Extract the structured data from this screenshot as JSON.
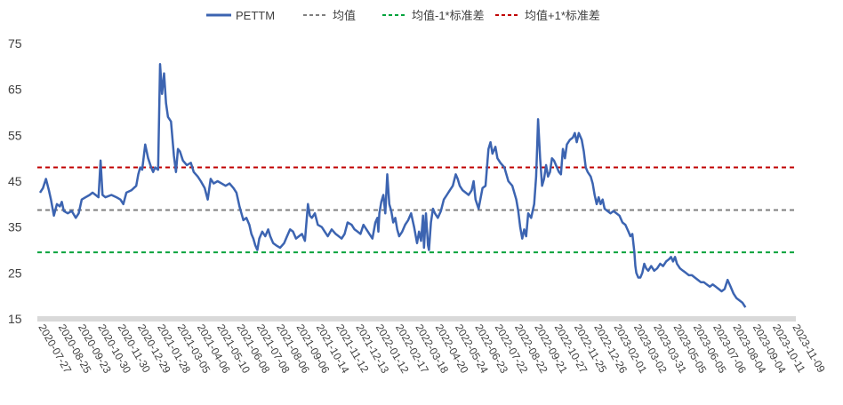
{
  "chart_data": {
    "type": "line",
    "title": "",
    "xlabel": "",
    "ylabel": "",
    "ylim": [
      15,
      75
    ],
    "yticks": [
      15,
      25,
      35,
      45,
      55,
      65,
      75
    ],
    "grid": false,
    "legend_position": "top",
    "x_tick_labels": [
      "2020-07-27",
      "2020-08-25",
      "2020-09-23",
      "2020-10-30",
      "2020-11-30",
      "2020-12-29",
      "2021-01-28",
      "2021-03-05",
      "2021-04-06",
      "2021-05-10",
      "2021-06-08",
      "2021-07-08",
      "2021-08-06",
      "2021-09-06",
      "2021-10-14",
      "2021-11-12",
      "2021-12-13",
      "2022-01-12",
      "2022-02-17",
      "2022-03-18",
      "2022-04-20",
      "2022-05-24",
      "2022-06-23",
      "2022-07-22",
      "2022-08-22",
      "2022-09-21",
      "2022-10-27",
      "2022-11-25",
      "2022-12-26",
      "2023-02-01",
      "2023-03-02",
      "2023-03-31",
      "2023-05-05",
      "2023-06-05",
      "2023-07-06",
      "2023-08-04",
      "2023-09-04",
      "2023-10-11",
      "2023-11-09"
    ],
    "series": [
      {
        "name": "PETTM",
        "color": "#3c64b1",
        "style": "solid",
        "points": [
          [
            0,
            42.5
          ],
          [
            0.15,
            43.5
          ],
          [
            0.3,
            45.5
          ],
          [
            0.45,
            43
          ],
          [
            0.55,
            41
          ],
          [
            0.7,
            37.5
          ],
          [
            0.85,
            40
          ],
          [
            1.0,
            39.5
          ],
          [
            1.1,
            40.5
          ],
          [
            1.2,
            38.5
          ],
          [
            1.4,
            38
          ],
          [
            1.6,
            38.5
          ],
          [
            1.8,
            37
          ],
          [
            1.95,
            38
          ],
          [
            2.1,
            41
          ],
          [
            2.3,
            41.5
          ],
          [
            2.5,
            42
          ],
          [
            2.65,
            42.5
          ],
          [
            2.8,
            42
          ],
          [
            2.95,
            41.5
          ],
          [
            3.05,
            49.5
          ],
          [
            3.15,
            42
          ],
          [
            3.3,
            41.5
          ],
          [
            3.6,
            42
          ],
          [
            3.85,
            41.5
          ],
          [
            4.05,
            41
          ],
          [
            4.2,
            40
          ],
          [
            4.35,
            42.5
          ],
          [
            4.6,
            43
          ],
          [
            4.85,
            44
          ],
          [
            4.95,
            46.5
          ],
          [
            5.05,
            48
          ],
          [
            5.15,
            47.5
          ],
          [
            5.3,
            53
          ],
          [
            5.45,
            50
          ],
          [
            5.6,
            48
          ],
          [
            5.7,
            47
          ],
          [
            5.8,
            48
          ],
          [
            5.95,
            47.5
          ],
          [
            6.05,
            70.5
          ],
          [
            6.15,
            64
          ],
          [
            6.25,
            68.5
          ],
          [
            6.35,
            62
          ],
          [
            6.45,
            59
          ],
          [
            6.6,
            58
          ],
          [
            6.75,
            50.5
          ],
          [
            6.85,
            47
          ],
          [
            6.95,
            52
          ],
          [
            7.05,
            51.5
          ],
          [
            7.2,
            49.5
          ],
          [
            7.4,
            48.5
          ],
          [
            7.6,
            49
          ],
          [
            7.75,
            47
          ],
          [
            7.95,
            46
          ],
          [
            8.1,
            45
          ],
          [
            8.3,
            43.5
          ],
          [
            8.45,
            41
          ],
          [
            8.6,
            45.5
          ],
          [
            8.75,
            44.5
          ],
          [
            8.95,
            45
          ],
          [
            9.15,
            44.5
          ],
          [
            9.35,
            44
          ],
          [
            9.55,
            44.5
          ],
          [
            9.75,
            43.5
          ],
          [
            9.9,
            42.5
          ],
          [
            10.05,
            39.5
          ],
          [
            10.15,
            38
          ],
          [
            10.25,
            36.5
          ],
          [
            10.4,
            37
          ],
          [
            10.55,
            35.5
          ],
          [
            10.65,
            33.5
          ],
          [
            10.75,
            32.5
          ],
          [
            10.85,
            31
          ],
          [
            10.95,
            30
          ],
          [
            11.05,
            32.5
          ],
          [
            11.2,
            34
          ],
          [
            11.35,
            33
          ],
          [
            11.5,
            34.5
          ],
          [
            11.6,
            33
          ],
          [
            11.75,
            31.5
          ],
          [
            11.9,
            31
          ],
          [
            12.1,
            30.5
          ],
          [
            12.3,
            31.5
          ],
          [
            12.45,
            33
          ],
          [
            12.6,
            34.5
          ],
          [
            12.75,
            34
          ],
          [
            12.9,
            32.5
          ],
          [
            13.05,
            33
          ],
          [
            13.2,
            33.5
          ],
          [
            13.35,
            32
          ],
          [
            13.5,
            40
          ],
          [
            13.6,
            37.5
          ],
          [
            13.7,
            37
          ],
          [
            13.85,
            38
          ],
          [
            14.0,
            35.5
          ],
          [
            14.2,
            35
          ],
          [
            14.35,
            34
          ],
          [
            14.5,
            33
          ],
          [
            14.7,
            34.5
          ],
          [
            14.9,
            33.5
          ],
          [
            15.05,
            33
          ],
          [
            15.2,
            32.5
          ],
          [
            15.35,
            33.5
          ],
          [
            15.5,
            36
          ],
          [
            15.7,
            35.5
          ],
          [
            15.85,
            34.5
          ],
          [
            16.0,
            34
          ],
          [
            16.15,
            33.5
          ],
          [
            16.3,
            35.5
          ],
          [
            16.45,
            34.5
          ],
          [
            16.6,
            33.5
          ],
          [
            16.75,
            32.5
          ],
          [
            16.9,
            36
          ],
          [
            17.0,
            37
          ],
          [
            17.05,
            34
          ],
          [
            17.1,
            38
          ],
          [
            17.2,
            40.5
          ],
          [
            17.3,
            42
          ],
          [
            17.4,
            38
          ],
          [
            17.5,
            46.5
          ],
          [
            17.6,
            40
          ],
          [
            17.7,
            38.5
          ],
          [
            17.8,
            36
          ],
          [
            17.9,
            37
          ],
          [
            18.0,
            34.5
          ],
          [
            18.1,
            33
          ],
          [
            18.25,
            34
          ],
          [
            18.4,
            35.5
          ],
          [
            18.55,
            36.5
          ],
          [
            18.7,
            38
          ],
          [
            18.85,
            35
          ],
          [
            19.0,
            31.5
          ],
          [
            19.1,
            34
          ],
          [
            19.2,
            32
          ],
          [
            19.3,
            37.5
          ],
          [
            19.35,
            30.5
          ],
          [
            19.45,
            38
          ],
          [
            19.55,
            31
          ],
          [
            19.6,
            30
          ],
          [
            19.7,
            36
          ],
          [
            19.8,
            39
          ],
          [
            19.9,
            38
          ],
          [
            20.05,
            37
          ],
          [
            20.2,
            38.5
          ],
          [
            20.35,
            41
          ],
          [
            20.5,
            42
          ],
          [
            20.65,
            43
          ],
          [
            20.8,
            44
          ],
          [
            20.95,
            46.5
          ],
          [
            21.05,
            45.5
          ],
          [
            21.15,
            44
          ],
          [
            21.3,
            43
          ],
          [
            21.45,
            42.5
          ],
          [
            21.6,
            42
          ],
          [
            21.75,
            43
          ],
          [
            21.85,
            45
          ],
          [
            21.95,
            41
          ],
          [
            22.1,
            39
          ],
          [
            22.3,
            43.5
          ],
          [
            22.45,
            44
          ],
          [
            22.6,
            52
          ],
          [
            22.7,
            53.5
          ],
          [
            22.8,
            51
          ],
          [
            22.95,
            52.5
          ],
          [
            23.05,
            50
          ],
          [
            23.2,
            49
          ],
          [
            23.4,
            48
          ],
          [
            23.6,
            45
          ],
          [
            23.8,
            44
          ],
          [
            24.0,
            41
          ],
          [
            24.1,
            38.5
          ],
          [
            24.2,
            35
          ],
          [
            24.3,
            32.5
          ],
          [
            24.4,
            34.5
          ],
          [
            24.5,
            33
          ],
          [
            24.6,
            38
          ],
          [
            24.75,
            37
          ],
          [
            24.9,
            40
          ],
          [
            25.0,
            46
          ],
          [
            25.05,
            52
          ],
          [
            25.1,
            58.5
          ],
          [
            25.2,
            50
          ],
          [
            25.3,
            44
          ],
          [
            25.4,
            45.5
          ],
          [
            25.5,
            48.5
          ],
          [
            25.6,
            46
          ],
          [
            25.7,
            47
          ],
          [
            25.8,
            50
          ],
          [
            25.9,
            49.5
          ],
          [
            26.05,
            48
          ],
          [
            26.15,
            47
          ],
          [
            26.25,
            46.5
          ],
          [
            26.35,
            52
          ],
          [
            26.45,
            50
          ],
          [
            26.55,
            53
          ],
          [
            26.7,
            54
          ],
          [
            26.85,
            54.5
          ],
          [
            26.95,
            55.5
          ],
          [
            27.05,
            53.5
          ],
          [
            27.15,
            55.5
          ],
          [
            27.3,
            54
          ],
          [
            27.4,
            51.5
          ],
          [
            27.5,
            48
          ],
          [
            27.6,
            47
          ],
          [
            27.75,
            46
          ],
          [
            27.85,
            44.5
          ],
          [
            27.95,
            42
          ],
          [
            28.05,
            40
          ],
          [
            28.15,
            41.5
          ],
          [
            28.25,
            40
          ],
          [
            28.35,
            41
          ],
          [
            28.45,
            39
          ],
          [
            28.6,
            38.5
          ],
          [
            28.75,
            38
          ],
          [
            28.9,
            38.5
          ],
          [
            29.05,
            38
          ],
          [
            29.2,
            37.5
          ],
          [
            29.35,
            36
          ],
          [
            29.5,
            35.5
          ],
          [
            29.65,
            34
          ],
          [
            29.75,
            33
          ],
          [
            29.85,
            33.5
          ],
          [
            29.95,
            29.5
          ],
          [
            30.0,
            26.5
          ],
          [
            30.05,
            25
          ],
          [
            30.15,
            24
          ],
          [
            30.25,
            24
          ],
          [
            30.35,
            25
          ],
          [
            30.45,
            27
          ],
          [
            30.55,
            26
          ],
          [
            30.65,
            25.5
          ],
          [
            30.8,
            26.5
          ],
          [
            30.95,
            25.5
          ],
          [
            31.1,
            26
          ],
          [
            31.25,
            27
          ],
          [
            31.4,
            26.5
          ],
          [
            31.55,
            27.5
          ],
          [
            31.7,
            28
          ],
          [
            31.8,
            28.5
          ],
          [
            31.9,
            27.5
          ],
          [
            32.0,
            28.5
          ],
          [
            32.1,
            27
          ],
          [
            32.25,
            26
          ],
          [
            32.4,
            25.5
          ],
          [
            32.55,
            25
          ],
          [
            32.7,
            24.5
          ],
          [
            32.85,
            24.5
          ],
          [
            33.0,
            24
          ],
          [
            33.15,
            23.5
          ],
          [
            33.3,
            23
          ],
          [
            33.45,
            23
          ],
          [
            33.6,
            22.5
          ],
          [
            33.75,
            22
          ],
          [
            33.9,
            22.5
          ],
          [
            34.05,
            22
          ],
          [
            34.2,
            21.5
          ],
          [
            34.35,
            21
          ],
          [
            34.5,
            21.5
          ],
          [
            34.65,
            23.5
          ],
          [
            34.8,
            22
          ],
          [
            34.95,
            20.5
          ],
          [
            35.1,
            19.5
          ],
          [
            35.25,
            19
          ],
          [
            35.4,
            18.5
          ],
          [
            35.55,
            17.5
          ]
        ]
      },
      {
        "name": "均值",
        "color": "#7f7f7f",
        "style": "dashed",
        "value": 38.7
      },
      {
        "name": "均值-1*标准差",
        "color": "#00a33c",
        "style": "dashed",
        "value": 29.5
      },
      {
        "name": "均值+1*标准差",
        "color": "#c00000",
        "style": "dashed",
        "value": 48.0
      }
    ]
  }
}
